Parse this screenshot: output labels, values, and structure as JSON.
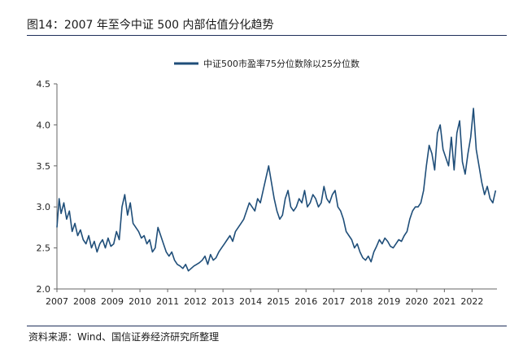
{
  "figure": {
    "title": "图14：2007 年至今中证 500 内部估值分化趋势",
    "source": "资料来源：Wind、国信证券经济研究所整理"
  },
  "chart_data": {
    "type": "line",
    "legend": [
      "中证500市盈率75分位数除以25分位数"
    ],
    "color": "#1f4e79",
    "xlabel": "",
    "ylabel": "",
    "xlim": [
      2007.0,
      2022.9
    ],
    "ylim": [
      2.0,
      4.5
    ],
    "yticks": [
      "2.0",
      "2.5",
      "3.0",
      "3.5",
      "4.0",
      "4.5"
    ],
    "xticks": [
      "2007",
      "2008",
      "2009",
      "2010",
      "2011",
      "2012",
      "2013",
      "2014",
      "2015",
      "2016",
      "2017",
      "2018",
      "2019",
      "2020",
      "2021",
      "2022"
    ],
    "series": [
      {
        "name": "中证500市盈率75分位数除以25分位数",
        "x": [
          2007.0,
          2007.08,
          2007.15,
          2007.25,
          2007.35,
          2007.45,
          2007.55,
          2007.65,
          2007.75,
          2007.85,
          2007.95,
          2008.05,
          2008.15,
          2008.25,
          2008.35,
          2008.45,
          2008.55,
          2008.65,
          2008.75,
          2008.85,
          2008.95,
          2009.05,
          2009.15,
          2009.25,
          2009.35,
          2009.45,
          2009.55,
          2009.65,
          2009.75,
          2009.85,
          2009.95,
          2010.05,
          2010.15,
          2010.25,
          2010.35,
          2010.45,
          2010.55,
          2010.65,
          2010.75,
          2010.85,
          2010.95,
          2011.05,
          2011.15,
          2011.25,
          2011.35,
          2011.45,
          2011.55,
          2011.65,
          2011.75,
          2011.85,
          2011.95,
          2012.05,
          2012.15,
          2012.25,
          2012.35,
          2012.45,
          2012.55,
          2012.65,
          2012.75,
          2012.85,
          2012.95,
          2013.05,
          2013.15,
          2013.25,
          2013.35,
          2013.45,
          2013.55,
          2013.65,
          2013.75,
          2013.85,
          2013.95,
          2014.05,
          2014.15,
          2014.25,
          2014.35,
          2014.45,
          2014.55,
          2014.65,
          2014.75,
          2014.85,
          2014.95,
          2015.05,
          2015.15,
          2015.25,
          2015.35,
          2015.45,
          2015.55,
          2015.65,
          2015.75,
          2015.85,
          2015.95,
          2016.05,
          2016.15,
          2016.25,
          2016.35,
          2016.45,
          2016.55,
          2016.65,
          2016.75,
          2016.85,
          2016.95,
          2017.05,
          2017.15,
          2017.25,
          2017.35,
          2017.45,
          2017.55,
          2017.65,
          2017.75,
          2017.85,
          2017.95,
          2018.05,
          2018.15,
          2018.25,
          2018.35,
          2018.45,
          2018.55,
          2018.65,
          2018.75,
          2018.85,
          2018.95,
          2019.05,
          2019.15,
          2019.25,
          2019.35,
          2019.45,
          2019.55,
          2019.65,
          2019.75,
          2019.85,
          2019.95,
          2020.05,
          2020.15,
          2020.25,
          2020.35,
          2020.45,
          2020.55,
          2020.65,
          2020.75,
          2020.85,
          2020.95,
          2021.05,
          2021.15,
          2021.25,
          2021.35,
          2021.45,
          2021.55,
          2021.65,
          2021.75,
          2021.85,
          2021.95,
          2022.05,
          2022.15,
          2022.25,
          2022.35,
          2022.45,
          2022.55,
          2022.65,
          2022.75,
          2022.85
        ],
        "values": [
          2.75,
          3.1,
          2.92,
          3.05,
          2.85,
          2.95,
          2.7,
          2.8,
          2.65,
          2.72,
          2.6,
          2.55,
          2.65,
          2.5,
          2.58,
          2.45,
          2.55,
          2.6,
          2.5,
          2.62,
          2.52,
          2.55,
          2.7,
          2.6,
          3.0,
          3.15,
          2.9,
          3.05,
          2.8,
          2.75,
          2.7,
          2.62,
          2.65,
          2.55,
          2.6,
          2.45,
          2.5,
          2.75,
          2.65,
          2.55,
          2.45,
          2.4,
          2.45,
          2.35,
          2.3,
          2.28,
          2.25,
          2.3,
          2.22,
          2.25,
          2.28,
          2.3,
          2.32,
          2.35,
          2.4,
          2.3,
          2.42,
          2.35,
          2.38,
          2.45,
          2.5,
          2.55,
          2.6,
          2.65,
          2.58,
          2.7,
          2.75,
          2.8,
          2.85,
          2.95,
          3.05,
          3.0,
          2.95,
          3.1,
          3.05,
          3.2,
          3.35,
          3.5,
          3.3,
          3.1,
          2.95,
          2.85,
          2.9,
          3.1,
          3.2,
          3.0,
          2.95,
          3.0,
          3.1,
          3.05,
          3.2,
          3.0,
          3.05,
          3.15,
          3.1,
          3.0,
          3.05,
          3.25,
          3.1,
          3.05,
          3.15,
          3.2,
          3.0,
          2.95,
          2.85,
          2.7,
          2.65,
          2.6,
          2.5,
          2.55,
          2.45,
          2.38,
          2.35,
          2.4,
          2.33,
          2.45,
          2.52,
          2.6,
          2.55,
          2.62,
          2.58,
          2.52,
          2.5,
          2.55,
          2.6,
          2.58,
          2.65,
          2.7,
          2.85,
          2.95,
          3.0,
          3.0,
          3.05,
          3.2,
          3.5,
          3.75,
          3.65,
          3.45,
          3.9,
          4.0,
          3.7,
          3.6,
          3.5,
          3.85,
          3.45,
          3.9,
          4.05,
          3.55,
          3.4,
          3.65,
          3.85,
          4.2,
          3.7,
          3.5,
          3.3,
          3.15,
          3.25,
          3.1,
          3.05,
          3.2
        ]
      }
    ]
  }
}
